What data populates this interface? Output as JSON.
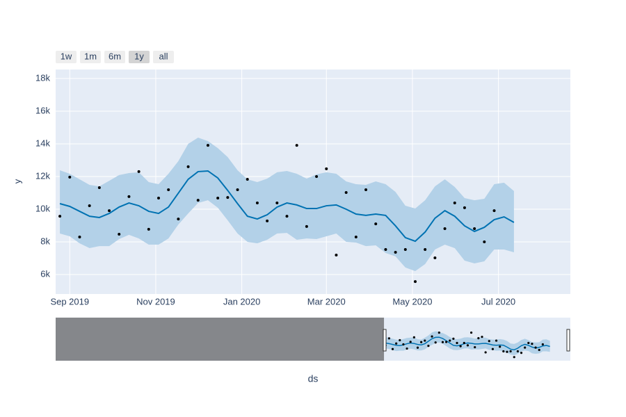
{
  "chart_data": {
    "type": "line",
    "x_axis_label": "ds",
    "y_axis_label": "y",
    "range_buttons": [
      "1w",
      "1m",
      "6m",
      "1y",
      "all"
    ],
    "active_button": 3,
    "xlim": [
      "2019-08-22",
      "2020-08-21"
    ],
    "slider_xlim": [
      "2017-11-17",
      "2020-08-21"
    ],
    "xticks": [
      {
        "value": "2019-09-01",
        "label": "Sep 2019"
      },
      {
        "value": "2019-11-01",
        "label": "Nov 2019"
      },
      {
        "value": "2020-01-01",
        "label": "Jan 2020"
      },
      {
        "value": "2020-03-01",
        "label": "Mar 2020"
      },
      {
        "value": "2020-05-01",
        "label": "May 2020"
      },
      {
        "value": "2020-07-01",
        "label": "Jul 2020"
      }
    ],
    "ylim": [
      4810,
      18550
    ],
    "yticks": [
      {
        "value": 6000,
        "label": "6k"
      },
      {
        "value": 8000,
        "label": "8k"
      },
      {
        "value": 10000,
        "label": "10k"
      },
      {
        "value": 12000,
        "label": "12k"
      },
      {
        "value": 14000,
        "label": "14k"
      },
      {
        "value": 16000,
        "label": "16k"
      },
      {
        "value": 18000,
        "label": "18k"
      }
    ],
    "grid": true,
    "actual": {
      "color": "#000000",
      "x": [
        "2019-08-25",
        "2019-09-01",
        "2019-09-08",
        "2019-09-15",
        "2019-09-22",
        "2019-09-29",
        "2019-10-06",
        "2019-10-13",
        "2019-10-20",
        "2019-10-27",
        "2019-11-03",
        "2019-11-10",
        "2019-11-17",
        "2019-11-24",
        "2019-12-01",
        "2019-12-08",
        "2019-12-15",
        "2019-12-22",
        "2019-12-29",
        "2020-01-05",
        "2020-01-12",
        "2020-01-19",
        "2020-01-26",
        "2020-02-02",
        "2020-02-09",
        "2020-02-16",
        "2020-02-23",
        "2020-03-01",
        "2020-03-08",
        "2020-03-15",
        "2020-03-22",
        "2020-03-29",
        "2020-04-05",
        "2020-04-12",
        "2020-04-19",
        "2020-04-26",
        "2020-05-03",
        "2020-05-10",
        "2020-05-17",
        "2020-05-24",
        "2020-05-31",
        "2020-06-07",
        "2020-06-14",
        "2020-06-21",
        "2020-06-28"
      ],
      "values": [
        9570,
        11960,
        8300,
        10210,
        11320,
        9910,
        8470,
        10770,
        12300,
        8770,
        10680,
        11190,
        9400,
        12600,
        10550,
        13910,
        10680,
        10720,
        11190,
        11830,
        10380,
        9280,
        10380,
        9570,
        13910,
        8940,
        12000,
        12470,
        7190,
        11020,
        8300,
        11190,
        9100,
        7530,
        7360,
        7530,
        5570,
        7530,
        7020,
        8810,
        10380,
        10090,
        8810,
        8000,
        9910
      ]
    },
    "forecast": {
      "color": "#0072b2",
      "band_color": "#b3d1e8",
      "x": [
        "2019-08-25",
        "2019-09-01",
        "2019-09-08",
        "2019-09-15",
        "2019-09-22",
        "2019-09-29",
        "2019-10-06",
        "2019-10-13",
        "2019-10-20",
        "2019-10-27",
        "2019-11-03",
        "2019-11-10",
        "2019-11-17",
        "2019-11-24",
        "2019-12-01",
        "2019-12-08",
        "2019-12-15",
        "2019-12-22",
        "2019-12-29",
        "2020-01-05",
        "2020-01-12",
        "2020-01-19",
        "2020-01-26",
        "2020-02-02",
        "2020-02-09",
        "2020-02-16",
        "2020-02-23",
        "2020-03-01",
        "2020-03-08",
        "2020-03-15",
        "2020-03-22",
        "2020-03-29",
        "2020-04-05",
        "2020-04-12",
        "2020-04-19",
        "2020-04-26",
        "2020-05-03",
        "2020-05-10",
        "2020-05-17",
        "2020-05-24",
        "2020-05-31",
        "2020-06-07",
        "2020-06-14",
        "2020-06-21",
        "2020-06-28",
        "2020-07-05",
        "2020-07-12"
      ],
      "values": [
        10340,
        10170,
        9870,
        9570,
        9490,
        9740,
        10130,
        10380,
        10210,
        9870,
        9740,
        10130,
        10980,
        11830,
        12300,
        12340,
        11910,
        11150,
        10340,
        9570,
        9400,
        9660,
        10130,
        10380,
        10260,
        10040,
        10040,
        10210,
        10260,
        10000,
        9700,
        9620,
        9700,
        9620,
        8980,
        8260,
        8040,
        8600,
        9450,
        9910,
        9570,
        8980,
        8640,
        8890,
        9360,
        9530,
        9190
      ],
      "upper": [
        12380,
        12170,
        11830,
        11490,
        11400,
        11740,
        12090,
        12210,
        12260,
        11660,
        11530,
        12170,
        12940,
        14000,
        14380,
        14170,
        13740,
        13190,
        12380,
        11830,
        11660,
        11870,
        12260,
        12340,
        12170,
        11870,
        12130,
        12260,
        12170,
        11700,
        11530,
        11490,
        11700,
        11530,
        11060,
        10210,
        10040,
        10550,
        11400,
        11830,
        11360,
        10680,
        10550,
        10640,
        11530,
        11620,
        11110
      ],
      "lower": [
        8510,
        8340,
        7910,
        7620,
        7740,
        7740,
        8170,
        8430,
        8210,
        7830,
        7830,
        8210,
        9060,
        9740,
        10380,
        10550,
        10090,
        9320,
        8510,
        8000,
        7910,
        8130,
        8510,
        8550,
        8130,
        8210,
        8170,
        8340,
        8510,
        8000,
        7960,
        7740,
        7790,
        7320,
        7110,
        6430,
        6210,
        6640,
        7530,
        7830,
        7620,
        6850,
        6680,
        6810,
        7530,
        7530,
        7360
      ]
    }
  }
}
